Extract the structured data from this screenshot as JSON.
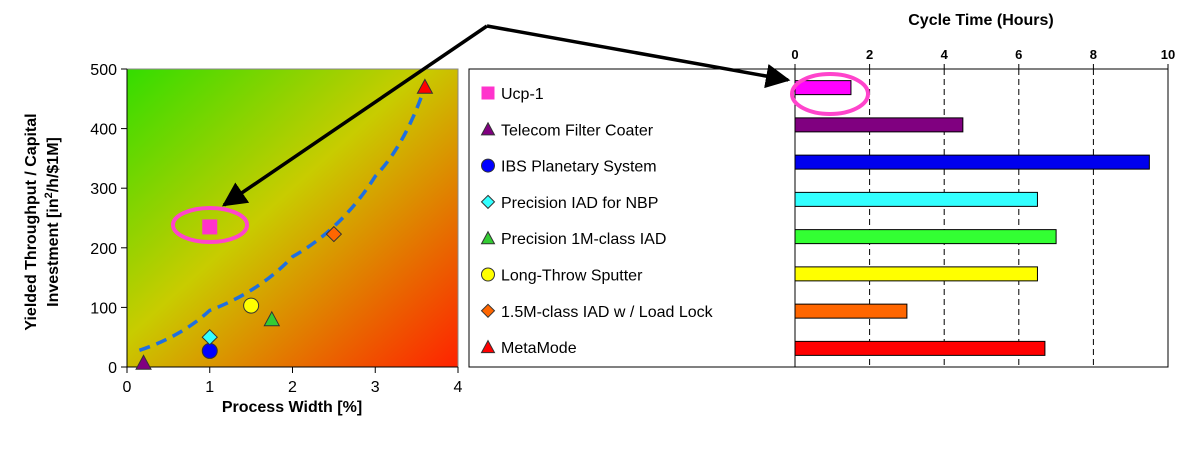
{
  "chart_data": [
    {
      "type": "scatter",
      "xlabel": "Process Width [%]",
      "ylabel_line1": "Yielded Throughput / Capital",
      "ylabel_line2_pre": "Investment [in",
      "ylabel_line2_sup": "2",
      "ylabel_line2_post": "/h/$1M]",
      "xlim": [
        0,
        4
      ],
      "ylim": [
        0,
        500
      ],
      "xticks": [
        "0",
        "1",
        "2",
        "3",
        "4"
      ],
      "yticks": [
        "0",
        "100",
        "200",
        "300",
        "400",
        "500"
      ],
      "xtick_values": [
        0,
        1,
        2,
        3,
        4
      ],
      "ytick_values": [
        0,
        100,
        200,
        300,
        400,
        500
      ],
      "background": "gradient green (top-left) to red (bottom-right)",
      "trendline": {
        "style": "dashed",
        "color": "#1f6fe0",
        "kind": "exponential",
        "points": [
          [
            0.15,
            28
          ],
          [
            1.0,
            95
          ],
          [
            2.0,
            185
          ],
          [
            3.0,
            320
          ],
          [
            3.6,
            470
          ]
        ]
      },
      "series": [
        {
          "name": "Ucp-1",
          "x": 1.0,
          "y": 235,
          "marker": "square",
          "color": "#ff33cc",
          "highlighted": true
        },
        {
          "name": "Telecom Filter Coater",
          "x": 0.2,
          "y": 7,
          "marker": "triangle",
          "color": "#800080"
        },
        {
          "name": "IBS Planetary System",
          "x": 1.0,
          "y": 27,
          "marker": "circle",
          "color": "#0000ff"
        },
        {
          "name": "Precision IAD for NBP",
          "x": 1.0,
          "y": 50,
          "marker": "diamond",
          "color": "#33ffff"
        },
        {
          "name": "Precision 1M-class IAD",
          "x": 1.75,
          "y": 80,
          "marker": "triangle",
          "color": "#33cc33"
        },
        {
          "name": "Long-Throw Sputter",
          "x": 1.5,
          "y": 103,
          "marker": "circle",
          "color": "#ffff00"
        },
        {
          "name": "1.5M-class IAD w / Load Lock",
          "x": 2.5,
          "y": 223,
          "marker": "diamond",
          "color": "#ff6600"
        },
        {
          "name": "MetaMode",
          "x": 3.6,
          "y": 470,
          "marker": "triangle",
          "color": "#ff0000"
        }
      ]
    },
    {
      "type": "bar",
      "orientation": "horizontal",
      "title": "Cycle Time (Hours)",
      "xlim": [
        0,
        10
      ],
      "xticks": [
        "0",
        "2",
        "4",
        "6",
        "8",
        "10"
      ],
      "xtick_values": [
        0,
        2,
        4,
        6,
        8,
        10
      ],
      "grid": "dashed vertical",
      "categories": [
        "Ucp-1",
        "Telecom Filter Coater",
        "IBS Planetary System",
        "Precision IAD for NBP",
        "Precision 1M-class IAD",
        "Long-Throw Sputter",
        "1.5M-class IAD w / Load Lock",
        "MetaMode"
      ],
      "values": [
        1.5,
        4.5,
        9.5,
        6.5,
        7.0,
        6.5,
        3.0,
        6.7
      ],
      "colors": [
        "#ff00ff",
        "#800080",
        "#0000ee",
        "#33ffff",
        "#33ff33",
        "#ffff00",
        "#ff6600",
        "#ff0000"
      ]
    }
  ],
  "legend": {
    "placement": "between charts",
    "items": [
      {
        "label": "Ucp-1",
        "marker": "square",
        "color": "#ff33cc"
      },
      {
        "label": "Telecom Filter Coater",
        "marker": "triangle",
        "color": "#800080"
      },
      {
        "label": "IBS Planetary System",
        "marker": "circle",
        "color": "#0000ff"
      },
      {
        "label": "Precision IAD for NBP",
        "marker": "diamond",
        "color": "#33ffff"
      },
      {
        "label": "Precision 1M-class IAD",
        "marker": "triangle",
        "color": "#33cc33"
      },
      {
        "label": "Long-Throw Sputter",
        "marker": "circle",
        "color": "#ffff00"
      },
      {
        "label": "1.5M-class IAD w / Load Lock",
        "marker": "diamond",
        "color": "#ff6600"
      },
      {
        "label": "MetaMode",
        "marker": "triangle",
        "color": "#ff0000"
      }
    ]
  },
  "annotations": {
    "highlight_color": "#ff33cc",
    "arrow_color": "#000000"
  }
}
